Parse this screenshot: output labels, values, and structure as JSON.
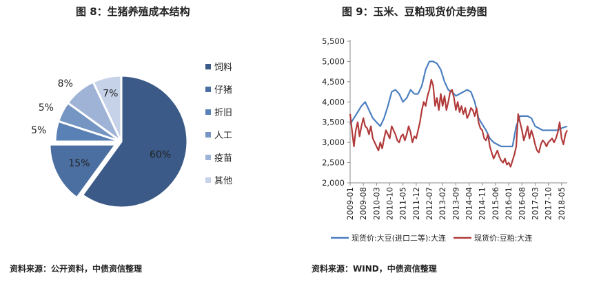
{
  "left": {
    "title": "图 8：生猪养殖成本结构",
    "source": "资料来源：公开资料，中债资信整理"
  },
  "right": {
    "title": "图 9：玉米、豆粕现货价走势图",
    "source": "资料来源：WIND，中债资信整理"
  },
  "colors": {
    "pie": [
      "#3b5a87",
      "#4a6fa0",
      "#5a81b5",
      "#7595c2",
      "#9fb3d6",
      "#c5d2e8"
    ],
    "corn": "#4b7fc0",
    "soy": "#b23a3a",
    "axis": "#888888",
    "grid": "#cccccc"
  },
  "chart_data": [
    {
      "type": "pie",
      "categories": [
        "饲料",
        "仔猪",
        "折旧",
        "人工",
        "疫苗",
        "其他"
      ],
      "values": [
        60,
        15,
        5,
        5,
        8,
        7
      ],
      "labels": [
        "60%",
        "15%",
        "5%",
        "5%",
        "8%",
        "7%"
      ],
      "exploded": "仔猪",
      "legend": "right"
    },
    {
      "type": "line",
      "ylim": [
        2000,
        5500
      ],
      "yticks": [
        "2,000",
        "2,500",
        "3,000",
        "3,500",
        "4,000",
        "4,500",
        "5,000",
        "5,500"
      ],
      "ytick_values": [
        2000,
        2500,
        3000,
        3500,
        4000,
        4500,
        5000,
        5500
      ],
      "xlim": [
        "2009-01",
        "2018-08"
      ],
      "xticks": [
        "2009-01",
        "2009-08",
        "2010-03",
        "2010-10",
        "2011-05",
        "2011-12",
        "2012-07",
        "2013-02",
        "2013-09",
        "2014-04",
        "2014-11",
        "2015-06",
        "2016-01",
        "2016-08",
        "2017-03",
        "2017-10",
        "2018-05"
      ],
      "legend": "bottom",
      "series": [
        {
          "name": "现货价:大豆(进口二等):大连",
          "points": [
            [
              "2009-01",
              3450
            ],
            [
              "2009-03",
              3600
            ],
            [
              "2009-05",
              3750
            ],
            [
              "2009-07",
              3900
            ],
            [
              "2009-09",
              4000
            ],
            [
              "2009-11",
              3800
            ],
            [
              "2010-01",
              3600
            ],
            [
              "2010-03",
              3500
            ],
            [
              "2010-05",
              3400
            ],
            [
              "2010-07",
              3600
            ],
            [
              "2010-09",
              3900
            ],
            [
              "2010-11",
              4250
            ],
            [
              "2011-01",
              4300
            ],
            [
              "2011-03",
              4200
            ],
            [
              "2011-05",
              4000
            ],
            [
              "2011-07",
              4100
            ],
            [
              "2011-09",
              4300
            ],
            [
              "2011-11",
              4200
            ],
            [
              "2012-01",
              4200
            ],
            [
              "2012-03",
              4400
            ],
            [
              "2012-05",
              4800
            ],
            [
              "2012-07",
              5000
            ],
            [
              "2012-09",
              5000
            ],
            [
              "2012-11",
              4950
            ],
            [
              "2013-01",
              4800
            ],
            [
              "2013-03",
              4500
            ],
            [
              "2013-05",
              4300
            ],
            [
              "2013-07",
              4250
            ],
            [
              "2013-09",
              4150
            ],
            [
              "2013-11",
              4200
            ],
            [
              "2014-01",
              4250
            ],
            [
              "2014-03",
              4300
            ],
            [
              "2014-05",
              4250
            ],
            [
              "2014-07",
              4000
            ],
            [
              "2014-09",
              3600
            ],
            [
              "2014-11",
              3450
            ],
            [
              "2015-01",
              3300
            ],
            [
              "2015-03",
              3100
            ],
            [
              "2015-05",
              3000
            ],
            [
              "2015-07",
              2950
            ],
            [
              "2015-09",
              2900
            ],
            [
              "2015-11",
              2900
            ],
            [
              "2016-01",
              2900
            ],
            [
              "2016-03",
              2900
            ],
            [
              "2016-05",
              3400
            ],
            [
              "2016-07",
              3650
            ],
            [
              "2016-09",
              3650
            ],
            [
              "2016-11",
              3650
            ],
            [
              "2017-01",
              3600
            ],
            [
              "2017-03",
              3400
            ],
            [
              "2017-05",
              3350
            ],
            [
              "2017-07",
              3300
            ],
            [
              "2017-09",
              3300
            ],
            [
              "2017-11",
              3300
            ],
            [
              "2018-01",
              3300
            ],
            [
              "2018-03",
              3300
            ],
            [
              "2018-05",
              3350
            ],
            [
              "2018-08",
              3400
            ]
          ]
        },
        {
          "name": "现货价:豆粕:大连",
          "points": [
            [
              "2009-01",
              3700
            ],
            [
              "2009-02",
              3300
            ],
            [
              "2009-03",
              2900
            ],
            [
              "2009-04",
              3300
            ],
            [
              "2009-05",
              3500
            ],
            [
              "2009-06",
              3150
            ],
            [
              "2009-07",
              3400
            ],
            [
              "2009-08",
              3600
            ],
            [
              "2009-09",
              3400
            ],
            [
              "2009-10",
              3350
            ],
            [
              "2009-11",
              3200
            ],
            [
              "2009-12",
              3400
            ],
            [
              "2010-01",
              3100
            ],
            [
              "2010-02",
              3000
            ],
            [
              "2010-03",
              2900
            ],
            [
              "2010-04",
              2800
            ],
            [
              "2010-05",
              3000
            ],
            [
              "2010-06",
              2850
            ],
            [
              "2010-07",
              3100
            ],
            [
              "2010-08",
              3300
            ],
            [
              "2010-09",
              3200
            ],
            [
              "2010-10",
              3100
            ],
            [
              "2010-11",
              3400
            ],
            [
              "2010-12",
              3300
            ],
            [
              "2011-01",
              3200
            ],
            [
              "2011-02",
              3050
            ],
            [
              "2011-03",
              3000
            ],
            [
              "2011-04",
              3150
            ],
            [
              "2011-05",
              3200
            ],
            [
              "2011-06",
              3050
            ],
            [
              "2011-07",
              3200
            ],
            [
              "2011-08",
              3400
            ],
            [
              "2011-09",
              3250
            ],
            [
              "2011-10",
              3000
            ],
            [
              "2011-11",
              3150
            ],
            [
              "2011-12",
              3100
            ],
            [
              "2012-01",
              3300
            ],
            [
              "2012-02",
              3500
            ],
            [
              "2012-03",
              3800
            ],
            [
              "2012-04",
              4000
            ],
            [
              "2012-05",
              3900
            ],
            [
              "2012-06",
              4150
            ],
            [
              "2012-07",
              4300
            ],
            [
              "2012-08",
              4550
            ],
            [
              "2012-09",
              4400
            ],
            [
              "2012-10",
              3900
            ],
            [
              "2012-11",
              4100
            ],
            [
              "2012-12",
              3800
            ],
            [
              "2013-01",
              4200
            ],
            [
              "2013-02",
              3900
            ],
            [
              "2013-03",
              4150
            ],
            [
              "2013-04",
              3800
            ],
            [
              "2013-05",
              4000
            ],
            [
              "2013-06",
              4250
            ],
            [
              "2013-07",
              4300
            ],
            [
              "2013-08",
              4100
            ],
            [
              "2013-09",
              3800
            ],
            [
              "2013-10",
              4000
            ],
            [
              "2013-11",
              3750
            ],
            [
              "2013-12",
              3900
            ],
            [
              "2014-01",
              3700
            ],
            [
              "2014-02",
              3850
            ],
            [
              "2014-03",
              3600
            ],
            [
              "2014-04",
              3700
            ],
            [
              "2014-05",
              3850
            ],
            [
              "2014-06",
              3800
            ],
            [
              "2014-07",
              3650
            ],
            [
              "2014-08",
              3850
            ],
            [
              "2014-09",
              3500
            ],
            [
              "2014-10",
              3350
            ],
            [
              "2014-11",
              3300
            ],
            [
              "2014-12",
              3100
            ],
            [
              "2015-01",
              3050
            ],
            [
              "2015-02",
              3200
            ],
            [
              "2015-03",
              2900
            ],
            [
              "2015-04",
              2750
            ],
            [
              "2015-05",
              2600
            ],
            [
              "2015-06",
              2700
            ],
            [
              "2015-07",
              2800
            ],
            [
              "2015-08",
              2650
            ],
            [
              "2015-09",
              2550
            ],
            [
              "2015-10",
              2500
            ],
            [
              "2015-11",
              2600
            ],
            [
              "2015-12",
              2450
            ],
            [
              "2016-01",
              2500
            ],
            [
              "2016-02",
              2400
            ],
            [
              "2016-03",
              2550
            ],
            [
              "2016-04",
              2700
            ],
            [
              "2016-05",
              2900
            ],
            [
              "2016-06",
              3700
            ],
            [
              "2016-07",
              3500
            ],
            [
              "2016-08",
              3300
            ],
            [
              "2016-09",
              3050
            ],
            [
              "2016-10",
              3200
            ],
            [
              "2016-11",
              3400
            ],
            [
              "2016-12",
              3100
            ],
            [
              "2017-01",
              3300
            ],
            [
              "2017-02",
              3150
            ],
            [
              "2017-03",
              2950
            ],
            [
              "2017-04",
              2800
            ],
            [
              "2017-05",
              2750
            ],
            [
              "2017-06",
              2950
            ],
            [
              "2017-07",
              3050
            ],
            [
              "2017-08",
              3000
            ],
            [
              "2017-09",
              2900
            ],
            [
              "2017-10",
              3000
            ],
            [
              "2017-11",
              3050
            ],
            [
              "2017-12",
              3100
            ],
            [
              "2018-01",
              3000
            ],
            [
              "2018-02",
              3100
            ],
            [
              "2018-03",
              3250
            ],
            [
              "2018-04",
              3500
            ],
            [
              "2018-05",
              3100
            ],
            [
              "2018-06",
              2950
            ],
            [
              "2018-07",
              3200
            ],
            [
              "2018-08",
              3300
            ]
          ]
        }
      ]
    }
  ]
}
